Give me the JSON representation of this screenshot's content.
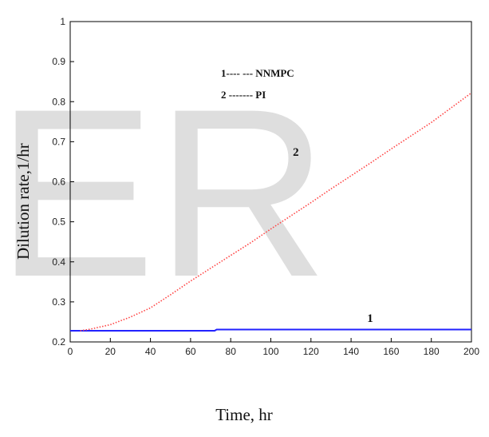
{
  "chart_data": {
    "type": "line",
    "xlabel": "Time, hr",
    "ylabel": "Dilution rate,1/hr",
    "xlim": [
      0,
      200
    ],
    "ylim": [
      0.2,
      1.0
    ],
    "xticks": [
      "0",
      "20",
      "40",
      "60",
      "80",
      "100",
      "120",
      "140",
      "160",
      "180",
      "200"
    ],
    "yticks": [
      "0.2",
      "0.3",
      "0.4",
      "0.5",
      "0.6",
      "0.7",
      "0.8",
      "0.9",
      "1"
    ],
    "grid": false,
    "legend": {
      "placement": "top-center",
      "entries": [
        "1---- --- NNMPC",
        "2 ------- PI"
      ]
    },
    "annotations": [
      {
        "text": "2",
        "x": 111,
        "y": 0.665
      },
      {
        "text": "1",
        "x": 148,
        "y": 0.25
      }
    ],
    "watermark": "ER",
    "series": [
      {
        "name": "NNMPC",
        "color": "#2222ff",
        "style": "solid",
        "x": [
          0,
          20,
          40,
          60,
          72,
          73,
          100,
          140,
          200
        ],
        "y": [
          0.228,
          0.228,
          0.228,
          0.228,
          0.228,
          0.231,
          0.231,
          0.231,
          0.231
        ]
      },
      {
        "name": "PI",
        "color": "#ff4444",
        "style": "dotted",
        "x": [
          5,
          10,
          20,
          30,
          40,
          50,
          60,
          70,
          80,
          90,
          100,
          110,
          120,
          130,
          140,
          150,
          160,
          170,
          180,
          190,
          200
        ],
        "y": [
          0.228,
          0.232,
          0.243,
          0.262,
          0.285,
          0.318,
          0.352,
          0.384,
          0.416,
          0.448,
          0.482,
          0.515,
          0.548,
          0.582,
          0.615,
          0.648,
          0.682,
          0.715,
          0.748,
          0.785,
          0.822
        ]
      }
    ]
  }
}
